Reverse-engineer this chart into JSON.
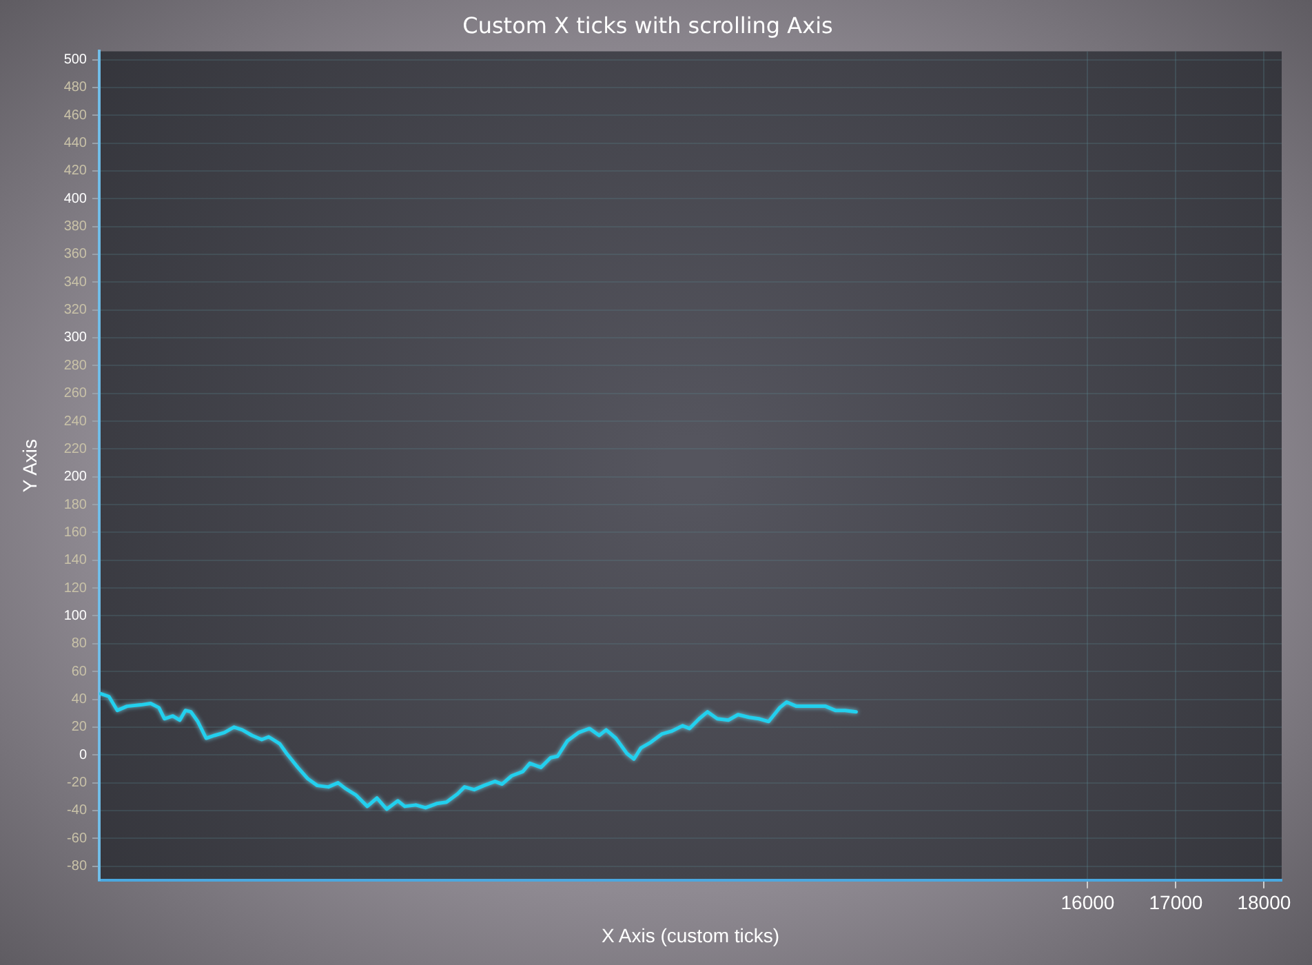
{
  "chart_data": {
    "type": "line",
    "title": "Custom X ticks with scrolling Axis",
    "xlabel": "X Axis (custom ticks)",
    "ylabel": "Y Axis",
    "xlim": [
      4790,
      18200
    ],
    "xticks": [
      16000,
      17000,
      18000
    ],
    "ylim": [
      -90,
      506
    ],
    "yticks": [
      -80,
      -60,
      -40,
      -20,
      0,
      20,
      40,
      60,
      80,
      100,
      120,
      140,
      160,
      180,
      200,
      220,
      240,
      260,
      280,
      300,
      320,
      340,
      360,
      380,
      400,
      420,
      440,
      460,
      480,
      500
    ],
    "grid": true,
    "legend": false,
    "marker": "none",
    "line_style": "solid",
    "series": [
      {
        "color": "#22d0ee",
        "x": [
          4806,
          4900,
          4995,
          5105,
          5263,
          5373,
          5467,
          5530,
          5625,
          5704,
          5767,
          5830,
          5908,
          6003,
          6097,
          6208,
          6318,
          6412,
          6523,
          6633,
          6712,
          6838,
          6916,
          7042,
          7153,
          7263,
          7389,
          7499,
          7578,
          7704,
          7830,
          7940,
          8050,
          8176,
          8255,
          8381,
          8491,
          8617,
          8728,
          8854,
          8933,
          9043,
          9153,
          9279,
          9358,
          9468,
          9594,
          9673,
          9799,
          9909,
          9988,
          10098,
          10224,
          10350,
          10460,
          10539,
          10649,
          10775,
          10854,
          10933,
          11043,
          11169,
          11279,
          11405,
          11484,
          11594,
          11689,
          11799,
          11925,
          12035,
          12161,
          12271,
          12382,
          12508,
          12586,
          12697,
          12791,
          12901,
          13027,
          13138,
          13248,
          13374
        ],
        "values": [
          44,
          42,
          32,
          35,
          36,
          37,
          34,
          26,
          28,
          25,
          32,
          31,
          24,
          12,
          14,
          16,
          20,
          18,
          14,
          11,
          13,
          8,
          1,
          -9,
          -17,
          -22,
          -23,
          -20,
          -24,
          -29,
          -37,
          -31,
          -39,
          -33,
          -37,
          -36,
          -38,
          -35,
          -34,
          -28,
          -23,
          -25,
          -22,
          -19,
          -21,
          -15,
          -12,
          -6,
          -9,
          -2,
          -1,
          10,
          16,
          19,
          14,
          18,
          12,
          1,
          -3,
          5,
          9,
          15,
          17,
          21,
          19,
          26,
          31,
          26,
          25,
          29,
          27,
          26,
          24,
          34,
          38,
          35,
          35,
          35,
          35,
          32,
          32,
          31
        ]
      }
    ]
  }
}
